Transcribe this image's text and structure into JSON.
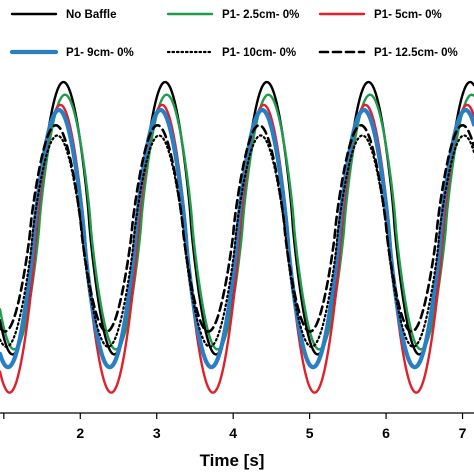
{
  "chart_data": {
    "type": "line",
    "title": "",
    "xlabel": "Time [s]",
    "ylabel": "",
    "xlim": [
      0.95,
      7.15
    ],
    "ylim": [
      -0.3,
      1.0
    ],
    "xticks": [
      2,
      3,
      4,
      5,
      6,
      7
    ],
    "legend": {
      "placement": "top",
      "columns": 3
    },
    "series": [
      {
        "name": "No Baffle",
        "color": "#000000",
        "style": "solid",
        "amplitude": 1.0,
        "trough": -0.07,
        "peak_shift": 0.0
      },
      {
        "name": "P1- 2.5cm- 0%",
        "color": "#1e9c4c",
        "style": "solid",
        "amplitude": 0.95,
        "trough": -0.05,
        "peak_shift": 0.02
      },
      {
        "name": "P1- 5cm- 0%",
        "color": "#e0202a",
        "style": "solid",
        "amplitude": 0.91,
        "trough": -0.22,
        "peak_shift": -0.04
      },
      {
        "name": "P1- 9cm- 0%",
        "color": "#2a7fc4",
        "style": "thick",
        "amplitude": 0.89,
        "trough": -0.12,
        "peak_shift": -0.06
      },
      {
        "name": "P1- 10cm- 0%",
        "color": "#000000",
        "style": "dotted",
        "amplitude": 0.79,
        "trough": -0.04,
        "peak_shift": -0.08
      },
      {
        "name": "P1- 12.5cm- 0%",
        "color": "#000000",
        "style": "dashed",
        "amplitude": 0.83,
        "trough": 0.02,
        "peak_shift": -0.1
      }
    ],
    "period": 1.33,
    "first_peak": 1.78
  }
}
